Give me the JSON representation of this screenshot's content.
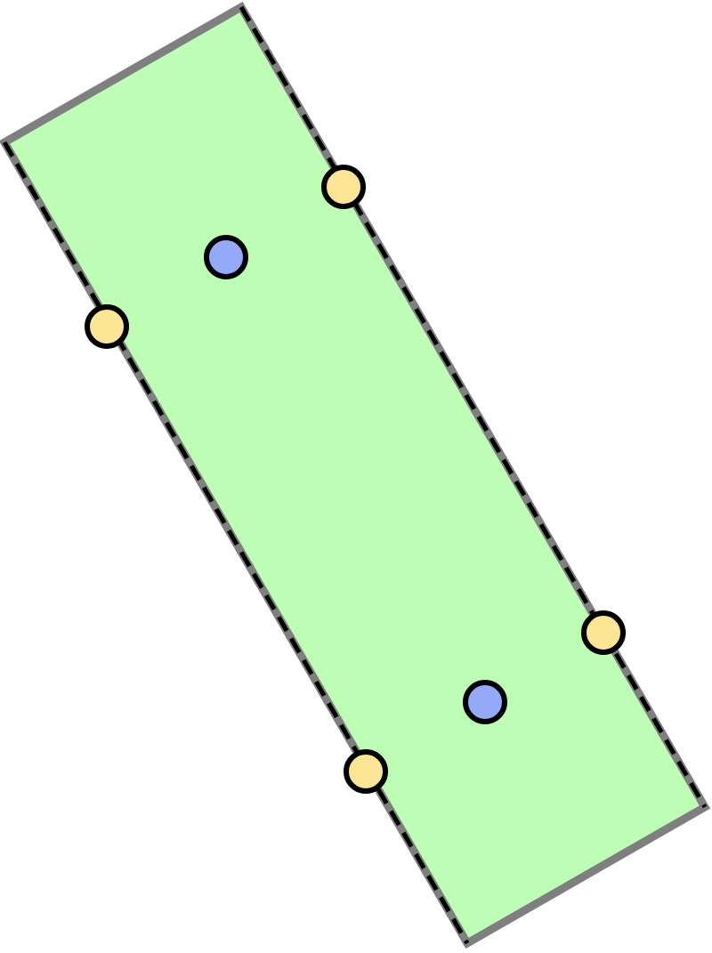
{
  "diagram": {
    "shape_kind": "rotated-rectangle",
    "colors": {
      "fill": "#bdfdb6",
      "outline": "#7f7f7f",
      "dash": "#000000",
      "center_handle_fill": "#94a9f8",
      "edge_handle_fill": "#fde597",
      "handle_stroke": "#000000",
      "background": "#ffffff"
    },
    "center_handles": [
      {
        "name": "center-handle-top"
      },
      {
        "name": "center-handle-bottom"
      }
    ],
    "edge_handles": [
      {
        "name": "edge-handle-top-right"
      },
      {
        "name": "edge-handle-left"
      },
      {
        "name": "edge-handle-right"
      },
      {
        "name": "edge-handle-bottom"
      }
    ]
  }
}
